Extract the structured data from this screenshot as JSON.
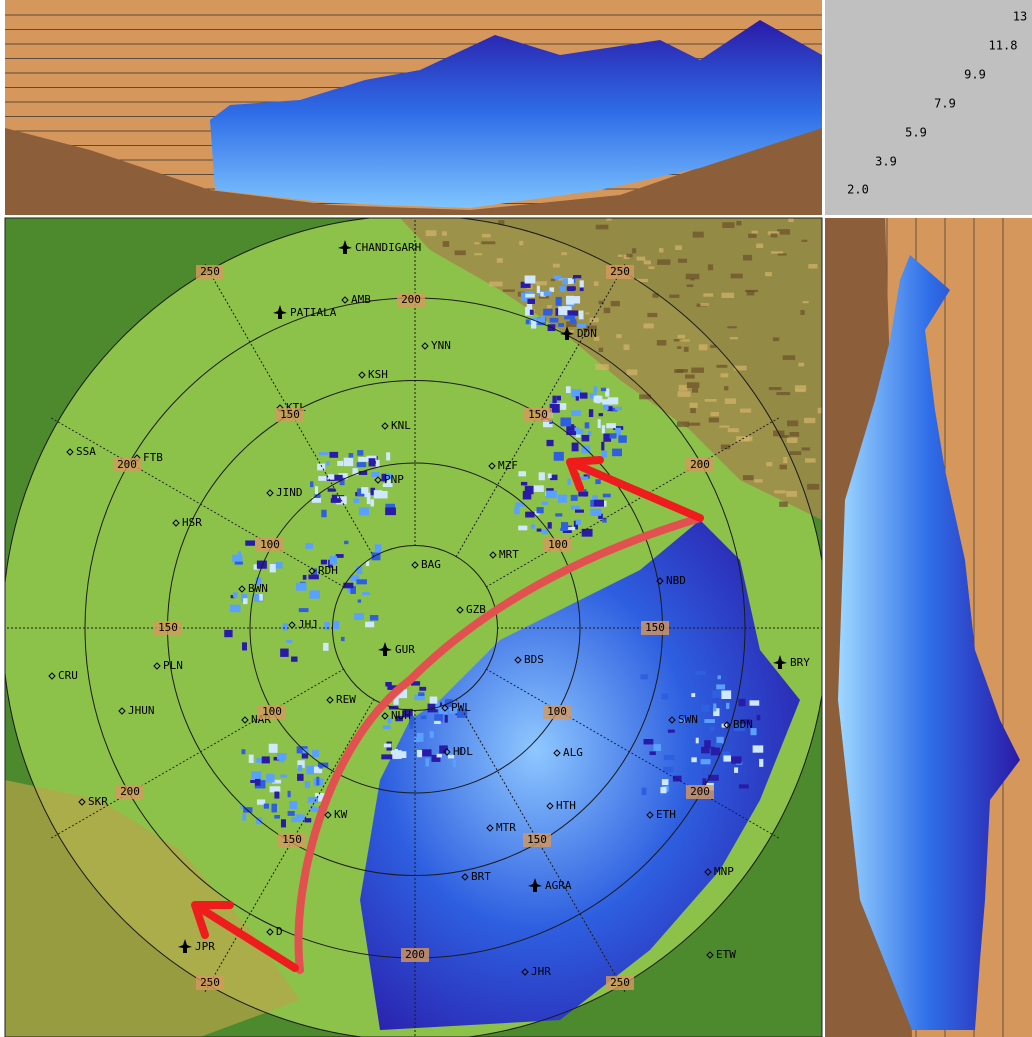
{
  "height_scale": {
    "labels": [
      13,
      11.8,
      9.9,
      7.9,
      5.9,
      3.9,
      {
        "value": 2,
        "label": "2.0"
      }
    ]
  },
  "range_labels": [
    250,
    200,
    250,
    150,
    200,
    200,
    150,
    100,
    100,
    150,
    150,
    100,
    100,
    200,
    150,
    150,
    200,
    200,
    250,
    250
  ],
  "places": [
    "CHANDIGARH",
    "AMB",
    "PATIALA",
    "DDN",
    "YNN",
    "KSH",
    "KTL",
    "KNL",
    "SSA",
    "FTB",
    "PNP",
    "MZF",
    "JIND",
    "HSR",
    "MRT",
    "BAG",
    "BWN",
    "NBD",
    "RDH",
    "JHJ",
    "GZB",
    "CRU",
    "PLN",
    "JHUN",
    "BDS",
    "BRY",
    "NAR",
    "REW",
    "NUH",
    "PWL",
    "GUR",
    "SWN",
    "BDN",
    "HDL",
    "ALG",
    "SKR",
    "MTR",
    "HTH",
    "ETH",
    "KW",
    "BRT",
    "AGRA",
    "MNP",
    "JPR",
    "D",
    "JHR",
    "ETW"
  ]
}
